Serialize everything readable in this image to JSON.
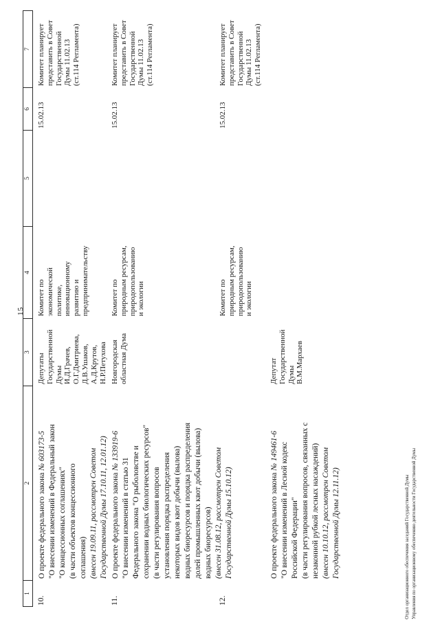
{
  "page_number": "15",
  "table": {
    "header": [
      "1",
      "2",
      "3",
      "4",
      "5",
      "6",
      "7"
    ],
    "rows": [
      {
        "num": "10.",
        "project_prefix": "О проекте федерального закона ",
        "project_number": "№ 603173-5",
        "col2_body": [
          "\"О внесении изменений в Федеральный закон",
          "\"О концессионных соглашениях\"",
          "(в части объектов концессионного",
          "соглашения)"
        ],
        "col2_note": [
          "(внесен 19.09.11, рассмотрен Советом",
          "Государственной Думы 17.10.11, 12.01.12)"
        ],
        "col3": [
          "Депутаты",
          "Государственной",
          "Думы",
          "И.Д.Грачев,",
          "О.Г.Дмитриева,",
          "Д.В.Ушаков,",
          "А.Д.Крутов,",
          "Н.Р.Петухова"
        ],
        "col4": [
          "Комитет по",
          "экономической",
          "политике,",
          "инновационному",
          "развитию и",
          "предпринимательству"
        ],
        "col6": "15.02.13",
        "col7": [
          "Комитет планирует",
          "представить в Совет",
          "Государственной",
          "Думы 11.02.13",
          "(ст.114 Регламента)"
        ]
      },
      {
        "num": "11.",
        "project_prefix": "О проекте федерального закона ",
        "project_number": "№ 133919-6",
        "col2_body": [
          "\"О внесении изменений в статью 31",
          "Федерального закона \"О рыболовстве и",
          "сохранении водных биологических ресурсов\"",
          "(в части регулирования вопросов",
          "установления порядка распределения",
          "некоторых видов квот добычи (вылова)",
          "водных биоресурсов и порядка распределения",
          "долей промышленных квот добычи (вылова)",
          "водных биоресурсов)"
        ],
        "col2_note": [
          "(внесен 31.08.12, рассмотрен Советом",
          "Государственной Думы 15.10.12)"
        ],
        "col3": [
          "Новгородская",
          "областная Дума"
        ],
        "col4": [
          "Комитет по",
          "природным ресурсам,",
          "природопользованию",
          "и экологии"
        ],
        "col6": "15.02.13",
        "col7": [
          "Комитет планирует",
          "представить в Совет",
          "Государственной",
          "Думы 11.02.13",
          "(ст.114 Регламента)"
        ]
      },
      {
        "num": "12.",
        "project_prefix": "О проекте федерального закона ",
        "project_number": "№ 149461-6",
        "col2_body": [
          "\"О внесении изменений в Лесной кодекс",
          "Российской Федерации\"",
          "(в части регулирования вопросов, связанных с",
          "незаконной рубкой лесных насаждений)"
        ],
        "col2_note": [
          "(внесен 10.10.12, рассмотрен Советом",
          "Государственной Думы 12.11.12)"
        ],
        "col3": [
          "Депутат",
          "Государственной",
          "Думы",
          "В.М.Мархаев"
        ],
        "col4": [
          "Комитет по",
          "природным ресурсам,",
          "природопользованию",
          "и экологии"
        ],
        "col6": "15.02.13",
        "col7": [
          "Комитет планирует",
          "представить в Совет",
          "Государственной",
          "Думы 11.02.13",
          "(ст.114 Регламента)"
        ]
      }
    ]
  },
  "footer": {
    "lines": [
      "Отдел организационного обеспечения заседаний Государственной Думы",
      "Управления по организационному обеспечению деятельности Государственной Думы"
    ]
  }
}
